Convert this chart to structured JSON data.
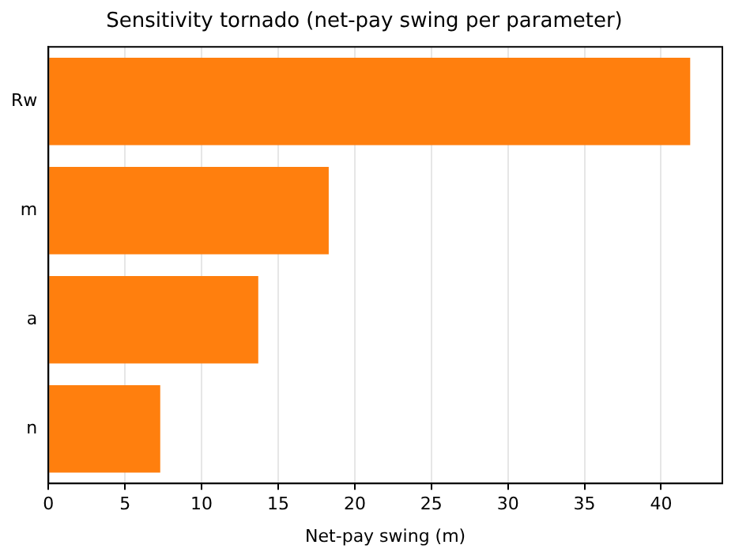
{
  "chart_data": {
    "type": "bar",
    "orientation": "horizontal",
    "title": "Sensitivity tornado (net-pay swing per parameter)",
    "xlabel": "Net-pay swing (m)",
    "categories": [
      "Rw",
      "m",
      "a",
      "n"
    ],
    "values": [
      41.9,
      18.3,
      13.7,
      7.3
    ],
    "color": "#ff7f0e",
    "xlim": [
      0,
      44
    ],
    "xticks": [
      0,
      5,
      10,
      15,
      20,
      25,
      30,
      35,
      40
    ],
    "grid": "x",
    "legend": false
  }
}
